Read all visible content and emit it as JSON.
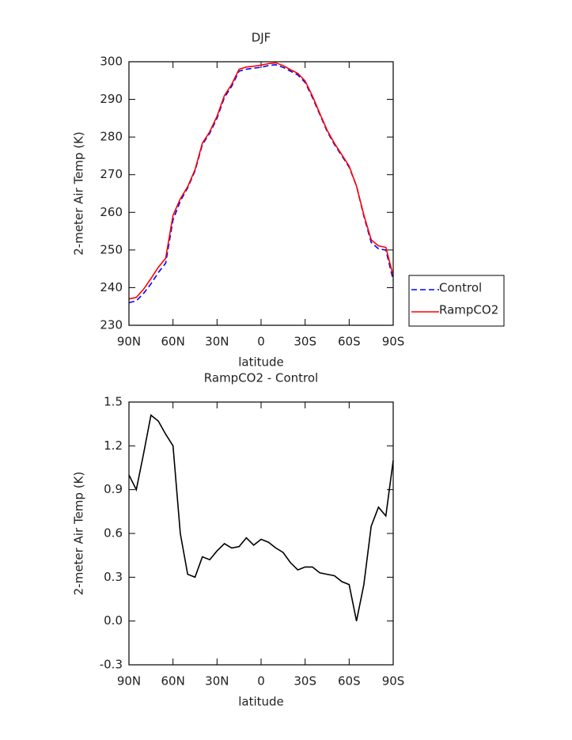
{
  "chart_data": [
    {
      "type": "line",
      "title": "DJF",
      "xlabel": "latitude",
      "ylabel": "2-meter Air Temp (K)",
      "x": [
        90,
        85,
        80,
        75,
        70,
        65,
        60,
        55,
        50,
        45,
        40,
        35,
        30,
        25,
        20,
        15,
        10,
        5,
        0,
        -5,
        -10,
        -15,
        -20,
        -25,
        -30,
        -35,
        -40,
        -45,
        -50,
        -55,
        -60,
        -65,
        -70,
        -75,
        -80,
        -85,
        -90
      ],
      "series": [
        {
          "name": "Control",
          "color": "#0000ff",
          "linestyle": "dashed",
          "values": [
            236,
            236.5,
            238.5,
            241,
            244,
            246.5,
            258,
            263,
            266.5,
            271,
            278,
            281,
            285,
            290.5,
            293.5,
            297.5,
            298,
            298.3,
            298.5,
            299,
            299.2,
            298.5,
            297.5,
            296.5,
            294.5,
            290.5,
            286,
            281.5,
            278,
            275,
            272,
            267,
            259,
            252,
            250.3,
            250,
            242
          ]
        },
        {
          "name": "RampCO2",
          "color": "#ff0000",
          "linestyle": "solid",
          "values": [
            237,
            237.4,
            239.6,
            242.4,
            245.4,
            247.8,
            259.2,
            263.6,
            266.8,
            271.3,
            278.4,
            281.4,
            285.5,
            291,
            294,
            298,
            298.6,
            298.8,
            299.1,
            299.5,
            299.7,
            299,
            297.9,
            296.9,
            294.9,
            290.9,
            286.3,
            281.8,
            278.3,
            275.3,
            272.3,
            267,
            259.3,
            252.7,
            251.1,
            250.7,
            243.1
          ]
        }
      ],
      "xlim": [
        90,
        -90
      ],
      "xticks": [
        {
          "value": 90,
          "label": "90N"
        },
        {
          "value": 60,
          "label": "60N"
        },
        {
          "value": 30,
          "label": "30N"
        },
        0,
        {
          "value": -30,
          "label": "30S"
        },
        {
          "value": -60,
          "label": "60S"
        },
        {
          "value": -90,
          "label": "90S"
        }
      ],
      "ylim": [
        230,
        300
      ],
      "yticks": [
        230,
        240,
        250,
        260,
        270,
        280,
        290,
        300
      ],
      "legend": "right"
    },
    {
      "type": "line",
      "title": "RampCO2 - Control",
      "xlabel": "latitude",
      "ylabel": "2-meter Air Temp (K)",
      "x": [
        90,
        85,
        80,
        75,
        70,
        65,
        60,
        55,
        50,
        45,
        40,
        35,
        30,
        25,
        20,
        15,
        10,
        5,
        0,
        -5,
        -10,
        -15,
        -20,
        -25,
        -30,
        -35,
        -40,
        -45,
        -50,
        -55,
        -60,
        -65,
        -70,
        -75,
        -80,
        -85,
        -90
      ],
      "values": [
        1.0,
        0.9,
        1.15,
        1.41,
        1.37,
        1.28,
        1.2,
        0.6,
        0.32,
        0.3,
        0.44,
        0.42,
        0.48,
        0.53,
        0.5,
        0.51,
        0.57,
        0.52,
        0.56,
        0.54,
        0.5,
        0.47,
        0.4,
        0.35,
        0.37,
        0.37,
        0.33,
        0.32,
        0.31,
        0.27,
        0.25,
        0.0,
        0.25,
        0.65,
        0.78,
        0.72,
        1.1
      ],
      "color": "#000000",
      "linestyle": "solid",
      "xlim": [
        90,
        -90
      ],
      "xticks": [
        {
          "value": 90,
          "label": "90N"
        },
        {
          "value": 60,
          "label": "60N"
        },
        {
          "value": 30,
          "label": "30N"
        },
        0,
        {
          "value": -30,
          "label": "30S"
        },
        {
          "value": -60,
          "label": "60S"
        },
        {
          "value": -90,
          "label": "90S"
        }
      ],
      "ylim": [
        -0.3,
        1.5
      ],
      "yticks": [
        -0.3,
        {
          "value": 0,
          "label": "0.0"
        },
        0.3,
        0.6,
        0.9,
        1.2,
        1.5
      ]
    }
  ]
}
